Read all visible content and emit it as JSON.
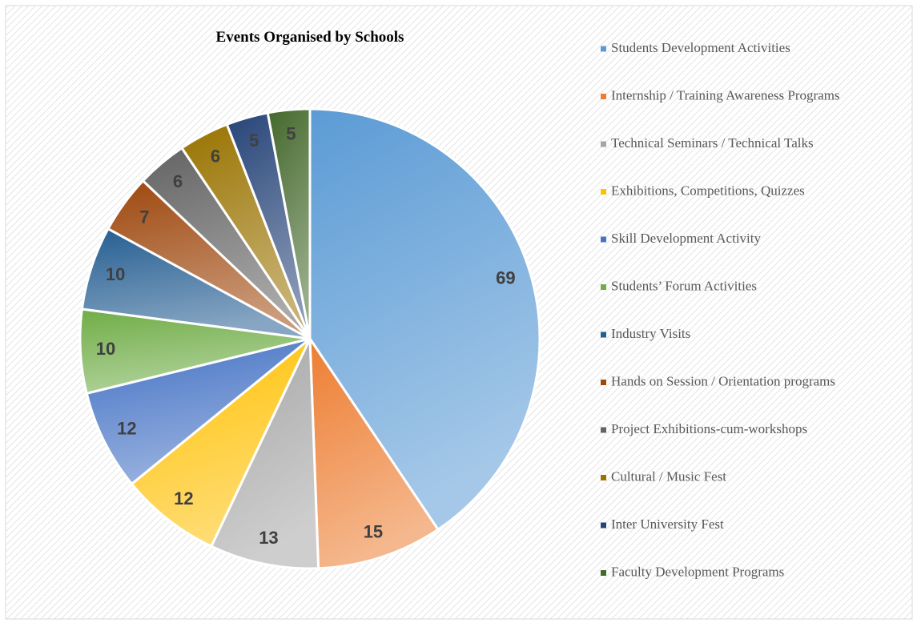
{
  "chart_data": {
    "type": "pie",
    "title": "Events Organised by Schools",
    "categories": [
      "Students Development Activities",
      "Internship / Training Awareness Programs",
      "Technical Seminars / Technical Talks",
      "Exhibitions, Competitions, Quizzes",
      "Skill Development Activity",
      "Students’ Forum Activities",
      "Industry Visits",
      "Hands on Session / Orientation programs",
      "Project Exhibitions-cum-workshops",
      "Cultural / Music Fest",
      "Inter University Fest",
      "Faculty Development Programs"
    ],
    "values": [
      69,
      15,
      13,
      12,
      12,
      10,
      10,
      7,
      6,
      6,
      5,
      5
    ],
    "colors": [
      "#5b9bd5",
      "#ed7d31",
      "#a5a5a5",
      "#ffc000",
      "#4472c4",
      "#70ad47",
      "#255e91",
      "#9e480e",
      "#636363",
      "#997300",
      "#264478",
      "#43682b"
    ],
    "legend": "right"
  }
}
